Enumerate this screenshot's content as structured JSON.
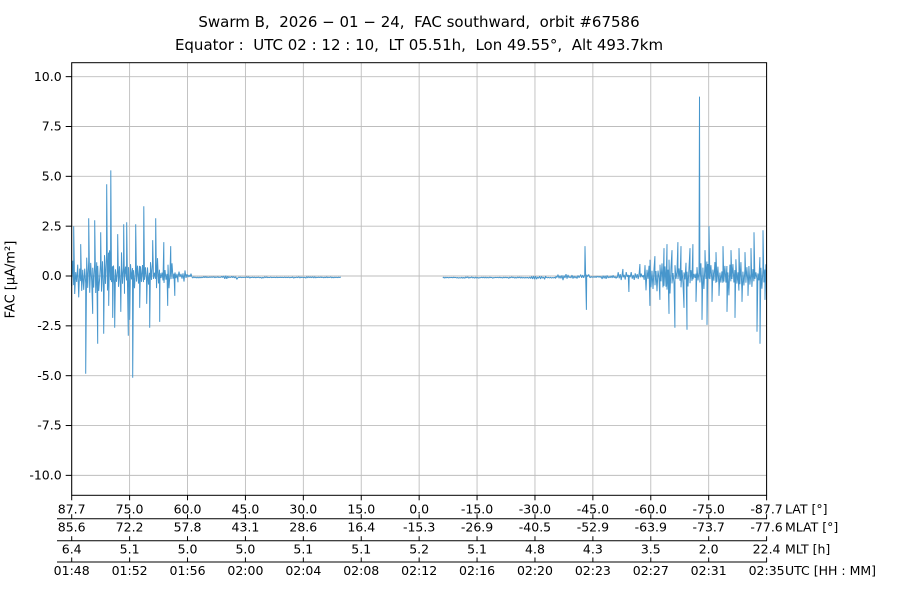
{
  "chart_data": {
    "type": "line",
    "title": "Swarm B,  2026 − 01 − 24,  FAC southward,  orbit #67586",
    "subtitle": "Equator :  UTC 02 : 12 : 10,  LT 05.51h,  Lon 49.55°,  Alt 493.7km",
    "ylabel": "FAC [µA/m²]",
    "ylim": [
      -11.0,
      10.7
    ],
    "ytick_values": [
      10.0,
      7.5,
      5.0,
      2.5,
      0.0,
      -2.5,
      -5.0,
      -7.5,
      -10.0
    ],
    "ytick_labels": [
      "10.0",
      "7.5",
      "5.0",
      "2.5",
      "0.0",
      "-2.5",
      "-5.0",
      "-7.5",
      "-10.0"
    ],
    "grid": true,
    "legend": "none",
    "line_color": "#4796cc",
    "grid_color": "#bdbdbd",
    "frame_color": "#000000",
    "x_axis_rows": [
      {
        "key": "lat",
        "name": "LAT [°]",
        "labels": [
          "87.7",
          "75.0",
          "60.0",
          "45.0",
          "30.0",
          "15.0",
          "0.0",
          "-15.0",
          "-30.0",
          "-45.0",
          "-60.0",
          "-75.0",
          "-87.7"
        ]
      },
      {
        "key": "mlat",
        "name": "MLAT [°]",
        "labels": [
          "85.6",
          "72.2",
          "57.8",
          "43.1",
          "28.6",
          "16.4",
          "-15.3",
          "-26.9",
          "-40.5",
          "-52.9",
          "-63.9",
          "-73.7",
          "-77.6"
        ]
      },
      {
        "key": "mlt",
        "name": "MLT [h]",
        "labels": [
          "6.4",
          "5.1",
          "5.0",
          "5.0",
          "5.1",
          "5.1",
          "5.2",
          "5.1",
          "4.8",
          "4.3",
          "3.5",
          "2.0",
          "22.4"
        ]
      },
      {
        "key": "utc",
        "name": "UTC [HH : MM]",
        "labels": [
          "01:48",
          "01:52",
          "01:56",
          "02:00",
          "02:04",
          "02:08",
          "02:12",
          "02:16",
          "02:20",
          "02:23",
          "02:27",
          "02:31",
          "02:35"
        ]
      }
    ],
    "series": [
      {
        "name": "FAC",
        "unit": "µA/m²",
        "description": "x given as fraction 0-1 of time axis (01:48-02:35 UTC); noise envelope segments and discrete spike extrema read from plot",
        "segments": [
          {
            "x0": 0.0,
            "x1": 0.04,
            "amp": 1.25
          },
          {
            "x0": 0.04,
            "x1": 0.076,
            "amp": 1.55
          },
          {
            "x0": 0.076,
            "x1": 0.127,
            "amp": 1.35
          },
          {
            "x0": 0.127,
            "x1": 0.153,
            "amp": 0.8
          },
          {
            "x0": 0.153,
            "x1": 0.173,
            "amp": 0.35
          },
          {
            "x0": 0.173,
            "x1": 0.216,
            "amp": 0.05,
            "base": -0.06
          },
          {
            "x0": 0.216,
            "x1": 0.239,
            "amp": 0.12,
            "base": -0.06
          },
          {
            "x0": 0.239,
            "x1": 0.388,
            "amp": 0.045,
            "base": -0.07
          },
          {
            "x0": 0.388,
            "x1": 0.534,
            "gap": true
          },
          {
            "x0": 0.534,
            "x1": 0.656,
            "amp": 0.05,
            "base": -0.08
          },
          {
            "x0": 0.656,
            "x1": 0.682,
            "amp": 0.1,
            "base": -0.08
          },
          {
            "x0": 0.682,
            "x1": 0.697,
            "amp": 0.06,
            "base": -0.08
          },
          {
            "x0": 0.697,
            "x1": 0.731,
            "amp": 0.2,
            "base": -0.05
          },
          {
            "x0": 0.731,
            "x1": 0.746,
            "amp": 0.3,
            "base": 0
          },
          {
            "x0": 0.746,
            "x1": 0.785,
            "amp": 0.12,
            "base": -0.05
          },
          {
            "x0": 0.785,
            "x1": 0.825,
            "amp": 0.4
          },
          {
            "x0": 0.825,
            "x1": 0.904,
            "amp": 0.95
          },
          {
            "x0": 0.904,
            "x1": 1.0,
            "amp": 1.05
          }
        ],
        "spikes": [
          [
            0.0029,
            2.5
          ],
          [
            0.013,
            1.6
          ],
          [
            0.0202,
            -4.9
          ],
          [
            0.0245,
            2.9
          ],
          [
            0.0302,
            -1.9
          ],
          [
            0.0331,
            2.8
          ],
          [
            0.0374,
            -3.4
          ],
          [
            0.0418,
            2.2
          ],
          [
            0.0461,
            -2.9
          ],
          [
            0.0504,
            4.6
          ],
          [
            0.0533,
            -1.5
          ],
          [
            0.0562,
            5.3
          ],
          [
            0.059,
            -2.1
          ],
          [
            0.0619,
            -2.6
          ],
          [
            0.0662,
            2.1
          ],
          [
            0.0706,
            -1.8
          ],
          [
            0.0749,
            2.6
          ],
          [
            0.0792,
            2.7
          ],
          [
            0.0815,
            -3.0
          ],
          [
            0.0835,
            -2.2
          ],
          [
            0.0878,
            -5.1
          ],
          [
            0.0921,
            2.6
          ],
          [
            0.0979,
            -1.6
          ],
          [
            0.1037,
            3.5
          ],
          [
            0.108,
            -1.4
          ],
          [
            0.1123,
            -2.6
          ],
          [
            0.1166,
            1.8
          ],
          [
            0.1209,
            2.9
          ],
          [
            0.1267,
            -2.3
          ],
          [
            0.1325,
            1.7
          ],
          [
            0.1382,
            -1.5
          ],
          [
            0.1425,
            1.5
          ],
          [
            0.1483,
            -1.0
          ],
          [
            0.7386,
            1.5
          ],
          [
            0.7407,
            -1.7
          ],
          [
            0.7932,
            0.35
          ],
          [
            0.8019,
            -0.8
          ],
          [
            0.8177,
            0.6
          ],
          [
            0.8321,
            -1.5
          ],
          [
            0.8393,
            1.0
          ],
          [
            0.8465,
            -1.2
          ],
          [
            0.8523,
            1.4
          ],
          [
            0.8566,
            1.6
          ],
          [
            0.8595,
            -1.9
          ],
          [
            0.8638,
            1.3
          ],
          [
            0.8681,
            -2.6
          ],
          [
            0.8724,
            1.7
          ],
          [
            0.8768,
            1.5
          ],
          [
            0.8811,
            -1.6
          ],
          [
            0.8854,
            -2.7
          ],
          [
            0.8897,
            1.4
          ],
          [
            0.894,
            1.6
          ],
          [
            0.8984,
            -1.3
          ],
          [
            0.9034,
            9.0
          ],
          [
            0.907,
            -2.2
          ],
          [
            0.9113,
            1.3
          ],
          [
            0.9142,
            -2.45
          ],
          [
            0.9171,
            2.5
          ],
          [
            0.9214,
            -1.3
          ],
          [
            0.9272,
            1.2
          ],
          [
            0.9315,
            -1.0
          ],
          [
            0.9372,
            1.5
          ],
          [
            0.943,
            -1.8
          ],
          [
            0.9488,
            1.3
          ],
          [
            0.9545,
            -2.1
          ],
          [
            0.9603,
            1.4
          ],
          [
            0.9646,
            -1.3
          ],
          [
            0.9689,
            1.2
          ],
          [
            0.9732,
            -1.0
          ],
          [
            0.9776,
            1.4
          ],
          [
            0.9819,
            2.2
          ],
          [
            0.9862,
            -2.8
          ],
          [
            0.9905,
            -3.4
          ],
          [
            0.9948,
            2.3
          ],
          [
            0.9977,
            -1.2
          ]
        ]
      }
    ]
  }
}
